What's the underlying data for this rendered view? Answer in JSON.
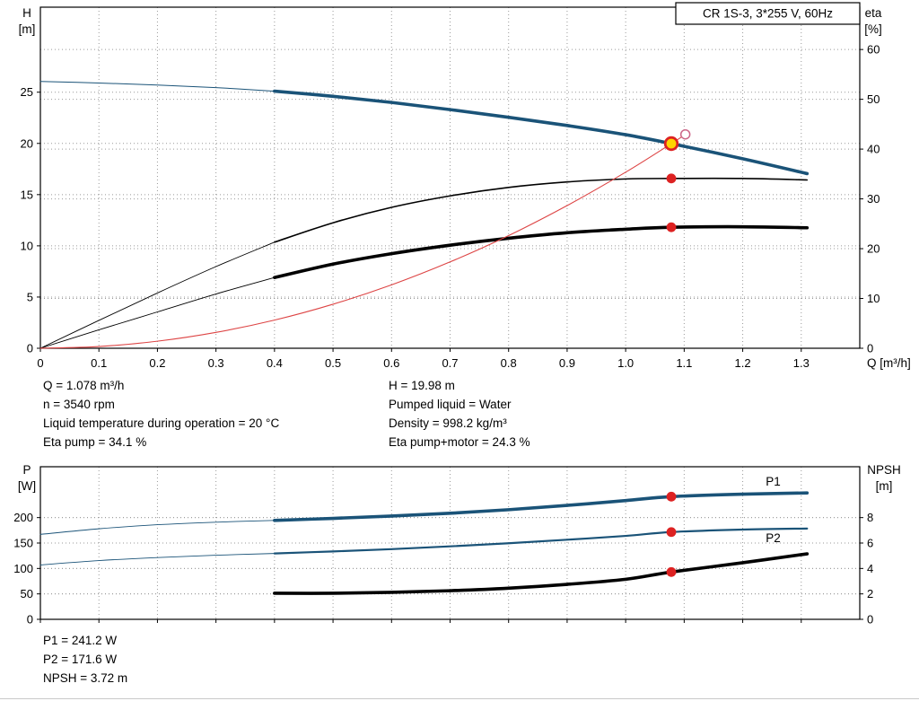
{
  "title_box": "CR 1S-3, 3*255 V, 60Hz",
  "colors": {
    "blue": "#1a5378",
    "black": "#000000",
    "red": "#dd2222",
    "system_red": "#dd4444",
    "open_ring": "#cc6688",
    "duty_fill": "#ffd400",
    "grid": "#999999"
  },
  "info_top": {
    "left": [
      "Q = 1.078 m³/h",
      "n = 3540 rpm",
      "Liquid temperature during operation = 20 °C",
      "Eta pump = 34.1 %"
    ],
    "right": [
      "H = 19.98 m",
      "Pumped liquid = Water",
      "Density = 998.2 kg/m³",
      "Eta pump+motor = 24.3 %"
    ]
  },
  "info_bottom": [
    "P1 = 241.2 W",
    "P2 = 171.6 W",
    "NPSH = 3.72 m"
  ],
  "chart_data": [
    {
      "type": "line",
      "title": "CR 1S-3, 3*255 V, 60Hz",
      "x_axis": {
        "label": "Q [m³/h]",
        "range": [
          0,
          1.4
        ],
        "tick_values": [
          0,
          0.1,
          0.2,
          0.3,
          0.4,
          0.5,
          0.6,
          0.7,
          0.8,
          0.9,
          1.0,
          1.1,
          1.2,
          1.3
        ],
        "tick_labels": [
          "0",
          "0.1",
          "0.2",
          "0.3",
          "0.4",
          "0.5",
          "0.6",
          "0.7",
          "0.8",
          "0.9",
          "1.0",
          "1.1",
          "1.2",
          "1.3"
        ]
      },
      "left_axis": {
        "header": [
          "H",
          "[m]"
        ],
        "range": [
          0,
          33.3
        ],
        "ticks": [
          0,
          5,
          10,
          15,
          20,
          25
        ]
      },
      "right_axis": {
        "header": [
          "eta",
          "[%]"
        ],
        "range": [
          0,
          68.5
        ],
        "ticks": [
          0,
          10,
          20,
          30,
          40,
          50,
          60
        ]
      },
      "series": [
        {
          "name": "pump-curve-lead",
          "axis": "left",
          "color": "blue",
          "width": 1,
          "points": [
            [
              0,
              26.05
            ],
            [
              0.1,
              25.9
            ],
            [
              0.2,
              25.7
            ],
            [
              0.3,
              25.45
            ],
            [
              0.4,
              25.1
            ]
          ]
        },
        {
          "name": "pump-curve",
          "axis": "left",
          "color": "blue",
          "width": 3.6,
          "points": [
            [
              0.4,
              25.1
            ],
            [
              0.5,
              24.6
            ],
            [
              0.6,
              24.0
            ],
            [
              0.7,
              23.3
            ],
            [
              0.8,
              22.55
            ],
            [
              0.9,
              21.75
            ],
            [
              1.0,
              20.85
            ],
            [
              1.078,
              19.98
            ],
            [
              1.2,
              18.5
            ],
            [
              1.31,
              17.05
            ]
          ]
        },
        {
          "name": "eta-pump-lead",
          "axis": "right",
          "color": "black",
          "width": 0.9,
          "points": [
            [
              0,
              0
            ],
            [
              0.1,
              5.6
            ],
            [
              0.2,
              11.1
            ],
            [
              0.3,
              16.4
            ],
            [
              0.4,
              21.3
            ]
          ]
        },
        {
          "name": "eta-pump-curve",
          "axis": "right",
          "color": "black",
          "width": 1.6,
          "points": [
            [
              0.4,
              21.3
            ],
            [
              0.5,
              25.2
            ],
            [
              0.6,
              28.3
            ],
            [
              0.7,
              30.6
            ],
            [
              0.8,
              32.3
            ],
            [
              0.9,
              33.4
            ],
            [
              1.0,
              34.0
            ],
            [
              1.078,
              34.1
            ],
            [
              1.2,
              34.1
            ],
            [
              1.31,
              33.8
            ]
          ]
        },
        {
          "name": "eta-total-lead",
          "axis": "right",
          "color": "black",
          "width": 0.9,
          "points": [
            [
              0,
              0
            ],
            [
              0.1,
              3.7
            ],
            [
              0.2,
              7.3
            ],
            [
              0.3,
              10.9
            ],
            [
              0.4,
              14.2
            ]
          ]
        },
        {
          "name": "eta-total-curve",
          "axis": "right",
          "color": "black",
          "width": 3.6,
          "points": [
            [
              0.4,
              14.2
            ],
            [
              0.5,
              16.9
            ],
            [
              0.6,
              19.0
            ],
            [
              0.7,
              20.7
            ],
            [
              0.8,
              22.1
            ],
            [
              0.9,
              23.2
            ],
            [
              1.0,
              23.9
            ],
            [
              1.078,
              24.3
            ],
            [
              1.2,
              24.4
            ],
            [
              1.31,
              24.2
            ]
          ]
        },
        {
          "name": "system-curve",
          "axis": "left",
          "color": "system_red",
          "width": 1.1,
          "points": [
            [
              0,
              0
            ],
            [
              0.1,
              0.17
            ],
            [
              0.2,
              0.69
            ],
            [
              0.3,
              1.55
            ],
            [
              0.4,
              2.75
            ],
            [
              0.5,
              4.3
            ],
            [
              0.6,
              6.19
            ],
            [
              0.7,
              8.43
            ],
            [
              0.8,
              11.0
            ],
            [
              0.9,
              13.93
            ],
            [
              1.0,
              17.19
            ],
            [
              1.078,
              19.98
            ],
            [
              1.102,
              20.88
            ]
          ]
        }
      ],
      "markers": [
        {
          "name": "system-end-point",
          "style": "open",
          "axis": "left",
          "x": 1.102,
          "y": 20.88
        },
        {
          "name": "duty-point",
          "style": "duty",
          "axis": "left",
          "x": 1.078,
          "y": 19.98
        },
        {
          "name": "eta-pump-point",
          "style": "dot",
          "axis": "right",
          "x": 1.078,
          "y": 34.1
        },
        {
          "name": "eta-total-point",
          "style": "dot",
          "axis": "right",
          "x": 1.078,
          "y": 24.3
        }
      ]
    },
    {
      "type": "line",
      "title": "",
      "x_axis": {
        "label": "",
        "range": [
          0,
          1.4
        ],
        "tick_values": [
          0,
          0.1,
          0.2,
          0.3,
          0.4,
          0.5,
          0.6,
          0.7,
          0.8,
          0.9,
          1.0,
          1.1,
          1.2,
          1.3
        ],
        "tick_labels": []
      },
      "left_axis": {
        "header": [
          "P",
          "[W]"
        ],
        "range": [
          0,
          300
        ],
        "ticks": [
          0,
          50,
          100,
          150,
          200
        ]
      },
      "right_axis": {
        "header": [
          "NPSH",
          "[m]"
        ],
        "range": [
          0,
          12
        ],
        "ticks": [
          0,
          2,
          4,
          6,
          8
        ]
      },
      "series": [
        {
          "name": "p1-lead",
          "axis": "left",
          "color": "blue",
          "width": 0.9,
          "points": [
            [
              0,
              167
            ],
            [
              0.1,
              178
            ],
            [
              0.2,
              186
            ],
            [
              0.3,
              191
            ],
            [
              0.4,
              194.5
            ]
          ]
        },
        {
          "name": "p1-curve",
          "axis": "left",
          "color": "blue",
          "width": 3.6,
          "points": [
            [
              0.4,
              194.5
            ],
            [
              0.5,
              198.5
            ],
            [
              0.6,
              203
            ],
            [
              0.7,
              208.5
            ],
            [
              0.8,
              215.5
            ],
            [
              0.9,
              224
            ],
            [
              1.0,
              233.5
            ],
            [
              1.078,
              241.2
            ],
            [
              1.2,
              246
            ],
            [
              1.31,
              248.5
            ]
          ]
        },
        {
          "name": "p2-lead",
          "axis": "left",
          "color": "blue",
          "width": 0.9,
          "points": [
            [
              0,
              107
            ],
            [
              0.1,
              115.5
            ],
            [
              0.2,
              121.5
            ],
            [
              0.3,
              126
            ],
            [
              0.4,
              129.5
            ]
          ]
        },
        {
          "name": "p2-curve",
          "axis": "left",
          "color": "blue",
          "width": 2.2,
          "points": [
            [
              0.4,
              129.5
            ],
            [
              0.5,
              133.5
            ],
            [
              0.6,
              138
            ],
            [
              0.7,
              143.5
            ],
            [
              0.8,
              149.5
            ],
            [
              0.9,
              156.5
            ],
            [
              1.0,
              164
            ],
            [
              1.078,
              171.6
            ],
            [
              1.2,
              176.5
            ],
            [
              1.31,
              178.5
            ]
          ]
        },
        {
          "name": "npsh-curve",
          "axis": "right",
          "color": "black",
          "width": 3.6,
          "points": [
            [
              0.4,
              2.05
            ],
            [
              0.5,
              2.05
            ],
            [
              0.6,
              2.12
            ],
            [
              0.7,
              2.25
            ],
            [
              0.8,
              2.45
            ],
            [
              0.9,
              2.75
            ],
            [
              1.0,
              3.15
            ],
            [
              1.078,
              3.72
            ],
            [
              1.2,
              4.45
            ],
            [
              1.31,
              5.15
            ]
          ]
        }
      ],
      "annotations": [
        {
          "name": "p1-label",
          "text": "P1",
          "axis": "left",
          "x": 1.252,
          "y": 263,
          "color": "blue"
        },
        {
          "name": "p2-label",
          "text": "P2",
          "axis": "left",
          "x": 1.252,
          "y": 152,
          "color": "blue"
        }
      ],
      "markers": [
        {
          "name": "p1-point",
          "style": "dot",
          "axis": "left",
          "x": 1.078,
          "y": 241.2
        },
        {
          "name": "p2-point",
          "style": "dot",
          "axis": "left",
          "x": 1.078,
          "y": 171.6
        },
        {
          "name": "npsh-point",
          "style": "dot",
          "axis": "right",
          "x": 1.078,
          "y": 3.72
        }
      ]
    }
  ]
}
